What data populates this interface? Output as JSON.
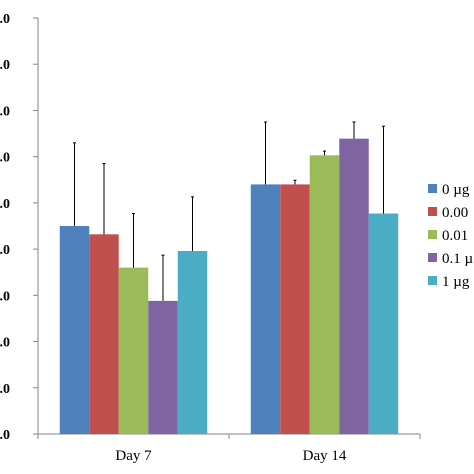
{
  "chart_data": {
    "type": "bar",
    "categories": [
      "Day 7",
      "Day 14"
    ],
    "series": [
      {
        "name": "0 µg",
        "color": "#4F81BD",
        "values": [
          50,
          60
        ],
        "error_upper": [
          70,
          75
        ]
      },
      {
        "name": "0.00",
        "color": "#C0504D",
        "values": [
          48,
          60
        ],
        "error_upper": [
          65,
          61
        ]
      },
      {
        "name": "0.01",
        "color": "#9BBB59",
        "values": [
          40,
          67
        ],
        "error_upper": [
          53,
          68
        ]
      },
      {
        "name": "0.1 µ",
        "color": "#8064A2",
        "values": [
          32,
          71
        ],
        "error_upper": [
          43,
          75
        ]
      },
      {
        "name": "1 µg",
        "color": "#4BACC6",
        "values": [
          44,
          53
        ],
        "error_upper": [
          57,
          74
        ]
      }
    ],
    "ytick_labels": [
      ".0",
      ".0",
      ".0",
      ".0",
      ".0",
      ".0",
      ".0",
      ".0",
      ".0",
      ".0"
    ],
    "ylim": [
      0,
      100
    ],
    "grid": false,
    "legend": "right",
    "title": "",
    "xlabel": "",
    "ylabel": ""
  }
}
